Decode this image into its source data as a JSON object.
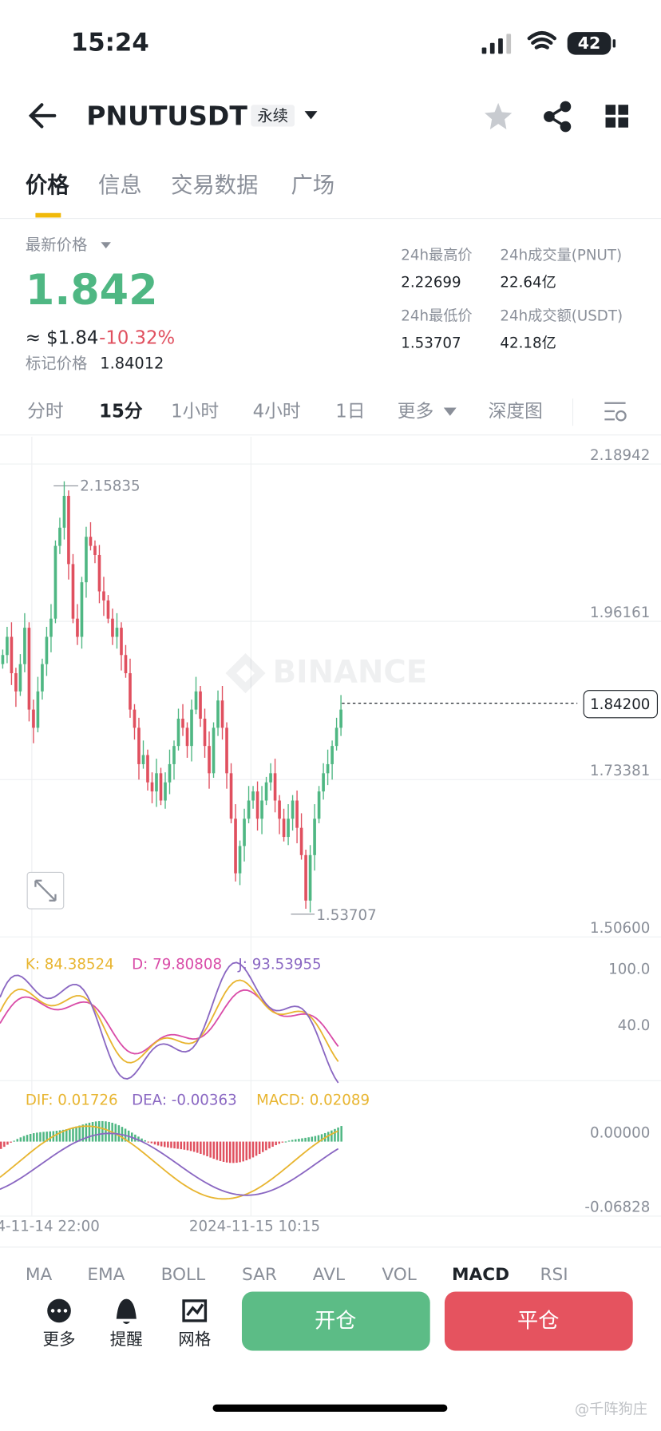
{
  "status_bar": {
    "time": "15:24",
    "battery": "42"
  },
  "header": {
    "symbol": "PNUTUSDT",
    "badge": "永续"
  },
  "tabs": [
    "价格",
    "信息",
    "交易数据",
    "广场"
  ],
  "price": {
    "label": "最新价格",
    "last": "1.842",
    "usd": "≈ $1.84",
    "change": "-10.32%",
    "mark_label": "标记价格",
    "mark": "1.84012"
  },
  "stats": [
    {
      "label": "24h最高价",
      "value": "2.22699"
    },
    {
      "label": "24h成交量(PNUT)",
      "value": "22.64亿"
    },
    {
      "label": "24h最低价",
      "value": "1.53707"
    },
    {
      "label": "24h成交额(USDT)",
      "value": "42.18亿"
    }
  ],
  "intervals": [
    "分时",
    "15分",
    "1小时",
    "4小时",
    "1日",
    "更多",
    "深度图"
  ],
  "chart": {
    "watermark": "BINANCE",
    "price_axis": [
      "2.18942",
      "1.96161",
      "1.73381",
      "1.50600"
    ],
    "current": "1.84200",
    "high": "2.15835",
    "low": "1.53707"
  },
  "kdj": {
    "k": "K: 84.38524",
    "d": "D: 79.80808",
    "j": "J: 93.53955",
    "axis": [
      "100.0",
      "40.0"
    ]
  },
  "macd": {
    "dif": "DIF: 0.01726",
    "dea": "DEA: -0.00363",
    "macd": "MACD: 0.02089",
    "axis": [
      "0.00000",
      "-0.06828"
    ]
  },
  "time_axis": [
    "4-11-14 22:00",
    "2024-11-15 10:15"
  ],
  "indicators": [
    "MA",
    "EMA",
    "BOLL",
    "SAR",
    "AVL",
    "VOL",
    "MACD",
    "RSI"
  ],
  "bottom": {
    "actions": [
      "更多",
      "提醒",
      "网格"
    ],
    "open": "开仓",
    "close": "平仓"
  },
  "watermark": "@千阵狗庄"
}
